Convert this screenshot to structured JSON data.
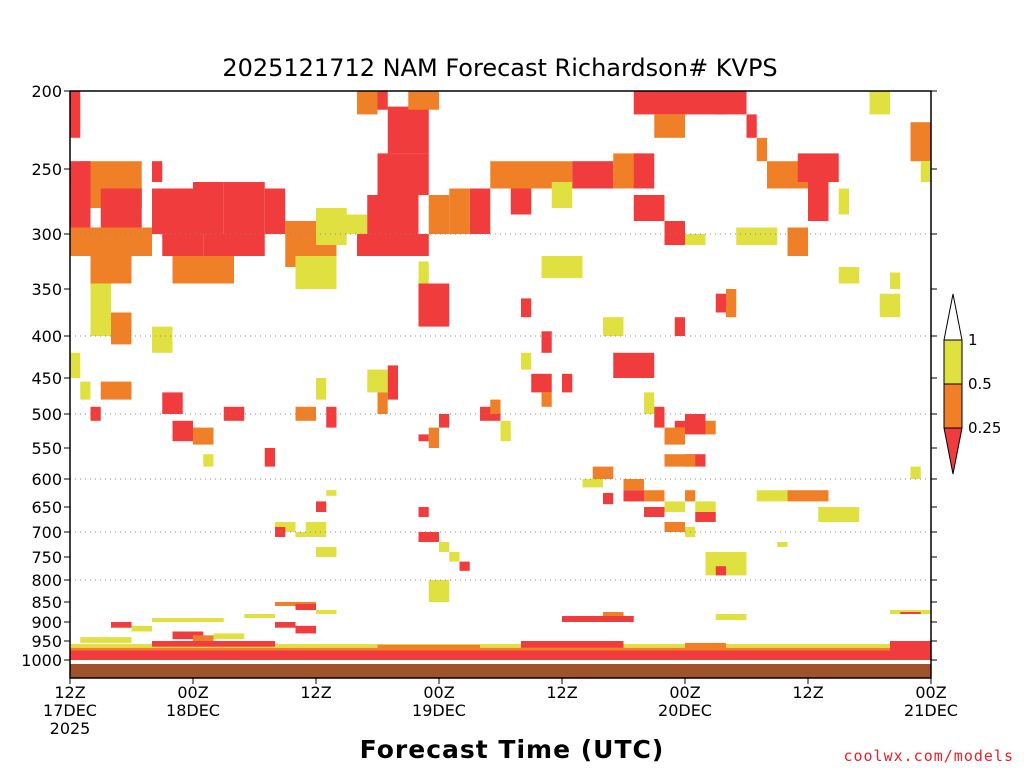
{
  "chart_data": {
    "type": "heatmap",
    "title": "2025121712 NAM Forecast Richardson# KVPS",
    "xlabel": "Forecast Time (UTC)",
    "credit": "coolwx.com/models",
    "ylim": [
      1000,
      200
    ],
    "xlim_hours": [
      0,
      84
    ],
    "y_ticks": [
      "200",
      "250",
      "300",
      "350",
      "400",
      "450",
      "500",
      "550",
      "600",
      "650",
      "700",
      "750",
      "800",
      "850",
      "900",
      "950",
      "1000"
    ],
    "x_ticks": [
      {
        "hour": 0,
        "line1": "12Z",
        "line2": "17DEC",
        "line3": "2025"
      },
      {
        "hour": 12,
        "line1": "00Z",
        "line2": "18DEC",
        "line3": ""
      },
      {
        "hour": 24,
        "line1": "12Z",
        "line2": "",
        "line3": ""
      },
      {
        "hour": 36,
        "line1": "00Z",
        "line2": "19DEC",
        "line3": ""
      },
      {
        "hour": 48,
        "line1": "12Z",
        "line2": "",
        "line3": ""
      },
      {
        "hour": 60,
        "line1": "00Z",
        "line2": "20DEC",
        "line3": ""
      },
      {
        "hour": 72,
        "line1": "12Z",
        "line2": "",
        "line3": ""
      },
      {
        "hour": 84,
        "line1": "00Z",
        "line2": "21DEC",
        "line3": ""
      }
    ],
    "gridlines_dotted_at": [
      300,
      400,
      500,
      600,
      700,
      800
    ],
    "legend": {
      "placement": "right",
      "levels": [
        "1",
        "0.5",
        "0.25"
      ],
      "bins": [
        {
          "range": "> 1",
          "color": "#ffffff"
        },
        {
          "range": "0.5 - 1",
          "color": "#e0e040"
        },
        {
          "range": "0.25 - 0.5",
          "color": "#f08028"
        },
        {
          "range": "< 0.25",
          "color": "#f03c3c"
        }
      ]
    },
    "colors": {
      "yellow": "#e0e040",
      "orange": "#f08028",
      "red": "#f03c3c",
      "ground": "#a0522d"
    },
    "cells": [
      {
        "h0": 0,
        "h1": 1,
        "p0": 200,
        "p1": 230,
        "c": "r"
      },
      {
        "h0": 1,
        "h1": 7,
        "p0": 245,
        "p1": 280,
        "c": "o"
      },
      {
        "h0": 0,
        "h1": 2,
        "p0": 245,
        "p1": 300,
        "c": "r"
      },
      {
        "h0": 3,
        "h1": 7,
        "p0": 265,
        "p1": 300,
        "c": "r"
      },
      {
        "h0": 0,
        "h1": 8,
        "p0": 295,
        "p1": 320,
        "c": "o"
      },
      {
        "h0": 2,
        "h1": 6,
        "p0": 320,
        "p1": 345,
        "c": "o"
      },
      {
        "h0": 2,
        "h1": 4,
        "p0": 345,
        "p1": 400,
        "c": "y"
      },
      {
        "h0": 4,
        "h1": 6,
        "p0": 375,
        "p1": 410,
        "c": "o"
      },
      {
        "h0": 0,
        "h1": 1,
        "p0": 420,
        "p1": 450,
        "c": "y"
      },
      {
        "h0": 1,
        "h1": 2,
        "p0": 455,
        "p1": 480,
        "c": "y"
      },
      {
        "h0": 3,
        "h1": 6,
        "p0": 455,
        "p1": 480,
        "c": "o"
      },
      {
        "h0": 2,
        "h1": 3,
        "p0": 490,
        "p1": 510,
        "c": "r"
      },
      {
        "h0": 8,
        "h1": 9,
        "p0": 245,
        "p1": 260,
        "c": "r"
      },
      {
        "h0": 8,
        "h1": 12,
        "p0": 265,
        "p1": 300,
        "c": "r"
      },
      {
        "h0": 9,
        "h1": 13,
        "p0": 300,
        "p1": 320,
        "c": "r"
      },
      {
        "h0": 12,
        "h1": 15,
        "p0": 260,
        "p1": 300,
        "c": "r"
      },
      {
        "h0": 13,
        "h1": 19,
        "p0": 300,
        "p1": 320,
        "c": "r"
      },
      {
        "h0": 10,
        "h1": 16,
        "p0": 320,
        "p1": 345,
        "c": "o"
      },
      {
        "h0": 8,
        "h1": 10,
        "p0": 390,
        "p1": 420,
        "c": "y"
      },
      {
        "h0": 9,
        "h1": 11,
        "p0": 470,
        "p1": 500,
        "c": "r"
      },
      {
        "h0": 10,
        "h1": 12,
        "p0": 510,
        "p1": 540,
        "c": "r"
      },
      {
        "h0": 12,
        "h1": 14,
        "p0": 520,
        "p1": 545,
        "c": "o"
      },
      {
        "h0": 13,
        "h1": 14,
        "p0": 560,
        "p1": 580,
        "c": "y"
      },
      {
        "h0": 15,
        "h1": 17,
        "p0": 490,
        "p1": 510,
        "c": "r"
      },
      {
        "h0": 19,
        "h1": 20,
        "p0": 550,
        "p1": 580,
        "c": "r"
      },
      {
        "h0": 15,
        "h1": 19,
        "p0": 260,
        "p1": 300,
        "c": "r"
      },
      {
        "h0": 19,
        "h1": 21,
        "p0": 265,
        "p1": 300,
        "c": "r"
      },
      {
        "h0": 21,
        "h1": 26,
        "p0": 290,
        "p1": 330,
        "c": "o"
      },
      {
        "h0": 22,
        "h1": 26,
        "p0": 320,
        "p1": 350,
        "c": "y"
      },
      {
        "h0": 24,
        "h1": 27,
        "p0": 280,
        "p1": 310,
        "c": "y"
      },
      {
        "h0": 26,
        "h1": 29,
        "p0": 285,
        "p1": 300,
        "c": "y"
      },
      {
        "h0": 22,
        "h1": 24,
        "p0": 490,
        "p1": 510,
        "c": "o"
      },
      {
        "h0": 24,
        "h1": 25,
        "p0": 450,
        "p1": 480,
        "c": "y"
      },
      {
        "h0": 25,
        "h1": 26,
        "p0": 490,
        "p1": 520,
        "c": "r"
      },
      {
        "h0": 29,
        "h1": 31,
        "p0": 440,
        "p1": 470,
        "c": "y"
      },
      {
        "h0": 30,
        "h1": 31,
        "p0": 470,
        "p1": 500,
        "c": "o"
      },
      {
        "h0": 31,
        "h1": 32,
        "p0": 435,
        "p1": 480,
        "c": "r"
      },
      {
        "h0": 28,
        "h1": 35,
        "p0": 300,
        "p1": 320,
        "c": "r"
      },
      {
        "h0": 29,
        "h1": 34,
        "p0": 270,
        "p1": 300,
        "c": "r"
      },
      {
        "h0": 30,
        "h1": 35,
        "p0": 240,
        "p1": 270,
        "c": "r"
      },
      {
        "h0": 31,
        "h1": 35,
        "p0": 210,
        "p1": 240,
        "c": "r"
      },
      {
        "h0": 28,
        "h1": 30,
        "p0": 200,
        "p1": 215,
        "c": "o"
      },
      {
        "h0": 30,
        "h1": 31,
        "p0": 200,
        "p1": 212,
        "c": "r"
      },
      {
        "h0": 33,
        "h1": 36,
        "p0": 200,
        "p1": 212,
        "c": "o"
      },
      {
        "h0": 34,
        "h1": 35,
        "p0": 325,
        "p1": 345,
        "c": "y"
      },
      {
        "h0": 34,
        "h1": 37,
        "p0": 345,
        "p1": 390,
        "c": "r"
      },
      {
        "h0": 35,
        "h1": 37,
        "p0": 270,
        "p1": 300,
        "c": "o"
      },
      {
        "h0": 39,
        "h1": 41,
        "p0": 265,
        "p1": 300,
        "c": "r"
      },
      {
        "h0": 37,
        "h1": 39,
        "p0": 265,
        "p1": 300,
        "c": "o"
      },
      {
        "h0": 36,
        "h1": 37,
        "p0": 500,
        "p1": 520,
        "c": "r"
      },
      {
        "h0": 34,
        "h1": 35,
        "p0": 530,
        "p1": 540,
        "c": "r"
      },
      {
        "h0": 35,
        "h1": 36,
        "p0": 520,
        "p1": 550,
        "c": "o"
      },
      {
        "h0": 40,
        "h1": 42,
        "p0": 490,
        "p1": 510,
        "c": "r"
      },
      {
        "h0": 41,
        "h1": 42,
        "p0": 480,
        "p1": 500,
        "c": "o"
      },
      {
        "h0": 42,
        "h1": 43,
        "p0": 510,
        "p1": 540,
        "c": "y"
      },
      {
        "h0": 41,
        "h1": 44,
        "p0": 245,
        "p1": 265,
        "c": "o"
      },
      {
        "h0": 44,
        "h1": 49,
        "p0": 245,
        "p1": 265,
        "c": "o"
      },
      {
        "h0": 49,
        "h1": 53,
        "p0": 245,
        "p1": 265,
        "c": "r"
      },
      {
        "h0": 53,
        "h1": 56,
        "p0": 240,
        "p1": 265,
        "c": "o"
      },
      {
        "h0": 43,
        "h1": 45,
        "p0": 265,
        "p1": 285,
        "c": "r"
      },
      {
        "h0": 47,
        "h1": 49,
        "p0": 260,
        "p1": 280,
        "c": "y"
      },
      {
        "h0": 44,
        "h1": 45,
        "p0": 360,
        "p1": 380,
        "c": "r"
      },
      {
        "h0": 46,
        "h1": 47,
        "p0": 395,
        "p1": 420,
        "c": "r"
      },
      {
        "h0": 44,
        "h1": 45,
        "p0": 420,
        "p1": 440,
        "c": "y"
      },
      {
        "h0": 45,
        "h1": 47,
        "p0": 445,
        "p1": 470,
        "c": "r"
      },
      {
        "h0": 46,
        "h1": 47,
        "p0": 470,
        "p1": 490,
        "c": "o"
      },
      {
        "h0": 48,
        "h1": 49,
        "p0": 445,
        "p1": 470,
        "c": "r"
      },
      {
        "h0": 46,
        "h1": 50,
        "p0": 320,
        "p1": 340,
        "c": "y"
      },
      {
        "h0": 52,
        "h1": 54,
        "p0": 380,
        "p1": 400,
        "c": "y"
      },
      {
        "h0": 53,
        "h1": 57,
        "p0": 420,
        "p1": 450,
        "c": "r"
      },
      {
        "h0": 55,
        "h1": 57,
        "p0": 240,
        "p1": 265,
        "c": "r"
      },
      {
        "h0": 55,
        "h1": 64,
        "p0": 200,
        "p1": 215,
        "c": "r"
      },
      {
        "h0": 57,
        "h1": 60,
        "p0": 215,
        "p1": 230,
        "c": "o"
      },
      {
        "h0": 55,
        "h1": 58,
        "p0": 270,
        "p1": 290,
        "c": "r"
      },
      {
        "h0": 58,
        "h1": 60,
        "p0": 290,
        "p1": 310,
        "c": "r"
      },
      {
        "h0": 56,
        "h1": 57,
        "p0": 470,
        "p1": 500,
        "c": "y"
      },
      {
        "h0": 57,
        "h1": 58,
        "p0": 490,
        "p1": 520,
        "c": "r"
      },
      {
        "h0": 58,
        "h1": 60,
        "p0": 520,
        "p1": 545,
        "c": "o"
      },
      {
        "h0": 59,
        "h1": 60,
        "p0": 510,
        "p1": 520,
        "c": "r"
      },
      {
        "h0": 60,
        "h1": 62,
        "p0": 300,
        "p1": 310,
        "c": "y"
      },
      {
        "h0": 59,
        "h1": 60,
        "p0": 380,
        "p1": 400,
        "c": "r"
      },
      {
        "h0": 63,
        "h1": 66,
        "p0": 200,
        "p1": 215,
        "c": "r"
      },
      {
        "h0": 66,
        "h1": 67,
        "p0": 215,
        "p1": 230,
        "c": "r"
      },
      {
        "h0": 67,
        "h1": 68,
        "p0": 230,
        "p1": 245,
        "c": "o"
      },
      {
        "h0": 68,
        "h1": 72,
        "p0": 245,
        "p1": 265,
        "c": "o"
      },
      {
        "h0": 71,
        "h1": 75,
        "p0": 240,
        "p1": 260,
        "c": "r"
      },
      {
        "h0": 72,
        "h1": 74,
        "p0": 260,
        "p1": 290,
        "c": "r"
      },
      {
        "h0": 75,
        "h1": 76,
        "p0": 265,
        "p1": 285,
        "c": "y"
      },
      {
        "h0": 78,
        "h1": 80,
        "p0": 200,
        "p1": 215,
        "c": "y"
      },
      {
        "h0": 82,
        "h1": 84,
        "p0": 220,
        "p1": 245,
        "c": "o"
      },
      {
        "h0": 83,
        "h1": 84,
        "p0": 245,
        "p1": 260,
        "c": "y"
      },
      {
        "h0": 65,
        "h1": 69,
        "p0": 295,
        "p1": 310,
        "c": "y"
      },
      {
        "h0": 70,
        "h1": 72,
        "p0": 295,
        "p1": 320,
        "c": "o"
      },
      {
        "h0": 75,
        "h1": 77,
        "p0": 330,
        "p1": 345,
        "c": "y"
      },
      {
        "h0": 79,
        "h1": 81,
        "p0": 355,
        "p1": 380,
        "c": "y"
      },
      {
        "h0": 80,
        "h1": 81,
        "p0": 335,
        "p1": 350,
        "c": "y"
      },
      {
        "h0": 63,
        "h1": 64,
        "p0": 355,
        "p1": 375,
        "c": "r"
      },
      {
        "h0": 64,
        "h1": 65,
        "p0": 350,
        "p1": 380,
        "c": "o"
      },
      {
        "h0": 60,
        "h1": 62,
        "p0": 560,
        "p1": 580,
        "c": "r"
      },
      {
        "h0": 58,
        "h1": 61,
        "p0": 560,
        "p1": 580,
        "c": "o"
      },
      {
        "h0": 60,
        "h1": 62,
        "p0": 500,
        "p1": 530,
        "c": "r"
      },
      {
        "h0": 62,
        "h1": 63,
        "p0": 510,
        "p1": 530,
        "c": "o"
      },
      {
        "h0": 56,
        "h1": 58,
        "p0": 620,
        "p1": 640,
        "c": "o"
      },
      {
        "h0": 54,
        "h1": 56,
        "p0": 620,
        "p1": 640,
        "c": "r"
      },
      {
        "h0": 51,
        "h1": 53,
        "p0": 580,
        "p1": 600,
        "c": "o"
      },
      {
        "h0": 50,
        "h1": 52,
        "p0": 600,
        "p1": 615,
        "c": "y"
      },
      {
        "h0": 52,
        "h1": 53,
        "p0": 625,
        "p1": 645,
        "c": "r"
      },
      {
        "h0": 54,
        "h1": 56,
        "p0": 600,
        "p1": 620,
        "c": "o"
      },
      {
        "h0": 56,
        "h1": 58,
        "p0": 650,
        "p1": 670,
        "c": "r"
      },
      {
        "h0": 58,
        "h1": 60,
        "p0": 640,
        "p1": 660,
        "c": "y"
      },
      {
        "h0": 60,
        "h1": 61,
        "p0": 620,
        "p1": 640,
        "c": "o"
      },
      {
        "h0": 61,
        "h1": 63,
        "p0": 640,
        "p1": 660,
        "c": "y"
      },
      {
        "h0": 61,
        "h1": 63,
        "p0": 660,
        "p1": 680,
        "c": "r"
      },
      {
        "h0": 58,
        "h1": 60,
        "p0": 680,
        "p1": 700,
        "c": "o"
      },
      {
        "h0": 60,
        "h1": 61,
        "p0": 690,
        "p1": 710,
        "c": "y"
      },
      {
        "h0": 62,
        "h1": 66,
        "p0": 740,
        "p1": 790,
        "c": "y"
      },
      {
        "h0": 63,
        "h1": 64,
        "p0": 770,
        "p1": 790,
        "c": "r"
      },
      {
        "h0": 67,
        "h1": 70,
        "p0": 620,
        "p1": 640,
        "c": "y"
      },
      {
        "h0": 70,
        "h1": 74,
        "p0": 620,
        "p1": 640,
        "c": "o"
      },
      {
        "h0": 73,
        "h1": 77,
        "p0": 650,
        "p1": 680,
        "c": "y"
      },
      {
        "h0": 69,
        "h1": 70,
        "p0": 720,
        "p1": 730,
        "c": "y"
      },
      {
        "h0": 82,
        "h1": 83,
        "p0": 580,
        "p1": 600,
        "c": "y"
      },
      {
        "h0": 20,
        "h1": 22,
        "p0": 680,
        "p1": 700,
        "c": "y"
      },
      {
        "h0": 20,
        "h1": 21,
        "p0": 690,
        "p1": 710,
        "c": "r"
      },
      {
        "h0": 22,
        "h1": 23,
        "p0": 700,
        "p1": 710,
        "c": "y"
      },
      {
        "h0": 24,
        "h1": 25,
        "p0": 640,
        "p1": 660,
        "c": "r"
      },
      {
        "h0": 25,
        "h1": 26,
        "p0": 620,
        "p1": 630,
        "c": "y"
      },
      {
        "h0": 24,
        "h1": 26,
        "p0": 730,
        "p1": 750,
        "c": "y"
      },
      {
        "h0": 23,
        "h1": 25,
        "p0": 680,
        "p1": 710,
        "c": "y"
      },
      {
        "h0": 34,
        "h1": 36,
        "p0": 700,
        "p1": 720,
        "c": "r"
      },
      {
        "h0": 36,
        "h1": 37,
        "p0": 720,
        "p1": 740,
        "c": "y"
      },
      {
        "h0": 37,
        "h1": 38,
        "p0": 740,
        "p1": 760,
        "c": "y"
      },
      {
        "h0": 38,
        "h1": 39,
        "p0": 760,
        "p1": 780,
        "c": "r"
      },
      {
        "h0": 35,
        "h1": 37,
        "p0": 800,
        "p1": 850,
        "c": "y"
      },
      {
        "h0": 34,
        "h1": 35,
        "p0": 650,
        "p1": 670,
        "c": "r"
      },
      {
        "h0": 17,
        "h1": 20,
        "p0": 880,
        "p1": 890,
        "c": "y"
      },
      {
        "h0": 20,
        "h1": 22,
        "p0": 900,
        "p1": 915,
        "c": "r"
      },
      {
        "h0": 22,
        "h1": 24,
        "p0": 910,
        "p1": 930,
        "c": "r"
      },
      {
        "h0": 20,
        "h1": 24,
        "p0": 850,
        "p1": 860,
        "c": "o"
      },
      {
        "h0": 22,
        "h1": 24,
        "p0": 855,
        "p1": 870,
        "c": "r"
      },
      {
        "h0": 24,
        "h1": 26,
        "p0": 870,
        "p1": 880,
        "c": "y"
      },
      {
        "h0": 8,
        "h1": 15,
        "p0": 890,
        "p1": 900,
        "c": "y"
      },
      {
        "h0": 6,
        "h1": 8,
        "p0": 910,
        "p1": 925,
        "c": "y"
      },
      {
        "h0": 4,
        "h1": 6,
        "p0": 900,
        "p1": 915,
        "c": "r"
      },
      {
        "h0": 10,
        "h1": 13,
        "p0": 925,
        "p1": 945,
        "c": "r"
      },
      {
        "h0": 12,
        "h1": 14,
        "p0": 935,
        "p1": 950,
        "c": "o"
      },
      {
        "h0": 1,
        "h1": 6,
        "p0": 940,
        "p1": 955,
        "c": "y"
      },
      {
        "h0": 14,
        "h1": 17,
        "p0": 930,
        "p1": 945,
        "c": "y"
      },
      {
        "h0": 48,
        "h1": 55,
        "p0": 885,
        "p1": 900,
        "c": "r"
      },
      {
        "h0": 52,
        "h1": 54,
        "p0": 875,
        "p1": 885,
        "c": "o"
      },
      {
        "h0": 63,
        "h1": 66,
        "p0": 880,
        "p1": 895,
        "c": "y"
      },
      {
        "h0": 80,
        "h1": 84,
        "p0": 870,
        "p1": 880,
        "c": "y"
      },
      {
        "h0": 81,
        "h1": 83,
        "p0": 875,
        "p1": 880,
        "c": "r"
      },
      {
        "h0": 0,
        "h1": 84,
        "p0": 958,
        "p1": 968,
        "c": "y"
      },
      {
        "h0": 0,
        "h1": 84,
        "p0": 968,
        "p1": 975,
        "c": "o"
      },
      {
        "h0": 0,
        "h1": 84,
        "p0": 975,
        "p1": 1000,
        "c": "r"
      },
      {
        "h0": 80,
        "h1": 84,
        "p0": 950,
        "p1": 975,
        "c": "r"
      },
      {
        "h0": 44,
        "h1": 54,
        "p0": 950,
        "p1": 968,
        "c": "r"
      },
      {
        "h0": 30,
        "h1": 40,
        "p0": 960,
        "p1": 975,
        "c": "o"
      },
      {
        "h0": 8,
        "h1": 20,
        "p0": 950,
        "p1": 965,
        "c": "r"
      },
      {
        "h0": 60,
        "h1": 64,
        "p0": 955,
        "p1": 970,
        "c": "o"
      }
    ]
  }
}
